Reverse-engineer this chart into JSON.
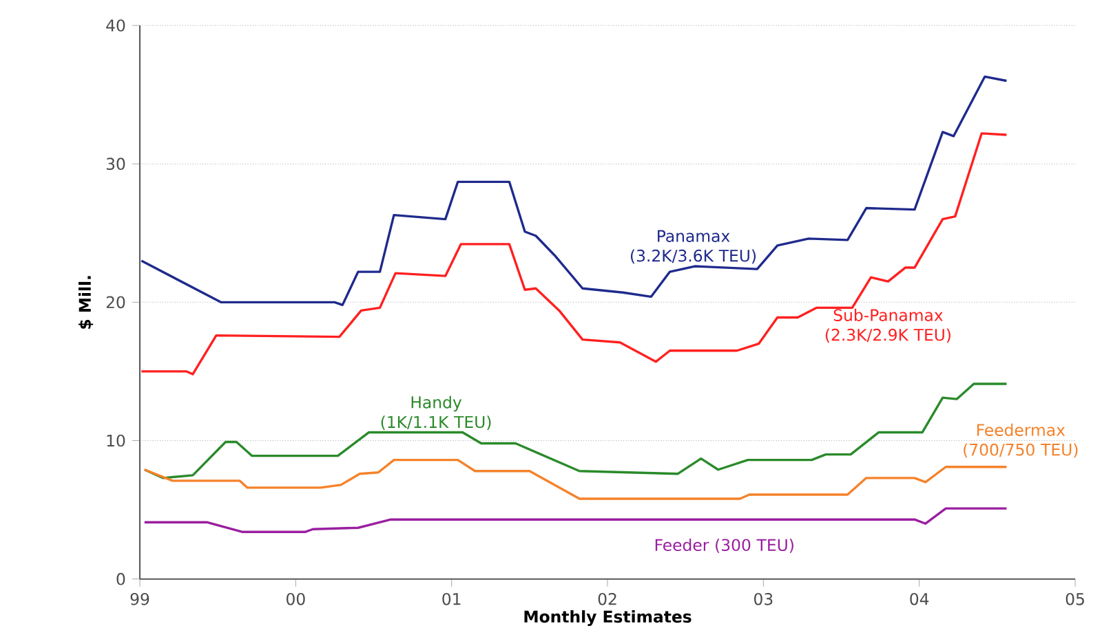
{
  "chart_data": {
    "type": "line",
    "xlabel": "Monthly Estimates",
    "ylabel": "$ Mill.",
    "xlim": [
      1999,
      2005
    ],
    "xticks": [
      {
        "value": 1999,
        "label": "99"
      },
      {
        "value": 2000,
        "label": "00"
      },
      {
        "value": 2001,
        "label": "01"
      },
      {
        "value": 2002,
        "label": "02"
      },
      {
        "value": 2003,
        "label": "03"
      },
      {
        "value": 2004,
        "label": "04"
      },
      {
        "value": 2005,
        "label": "05"
      }
    ],
    "ylim": [
      0,
      40
    ],
    "yticks": [
      0,
      10,
      20,
      30,
      40
    ],
    "grid": "y",
    "legend": false,
    "series": [
      {
        "name": "Panamax (3.2K/3.6K TEU)",
        "color": "#1f2a8c",
        "x": [
          1999.01,
          1999.52,
          2000.25,
          2000.3,
          2000.4,
          2000.54,
          2000.63,
          2000.96,
          2001.04,
          2001.37,
          2001.47,
          2001.54,
          2001.66,
          2001.84,
          2002.1,
          2002.28,
          2002.4,
          2002.56,
          2002.96,
          2003.09,
          2003.29,
          2003.54,
          2003.66,
          2003.97,
          2004.15,
          2004.22,
          2004.42,
          2004.56
        ],
        "values": [
          23.0,
          20.0,
          20.0,
          19.8,
          22.2,
          22.2,
          26.3,
          26.0,
          28.7,
          28.7,
          25.1,
          24.8,
          23.4,
          21.0,
          20.7,
          20.4,
          22.2,
          22.6,
          22.4,
          24.1,
          24.6,
          24.5,
          26.8,
          26.7,
          32.3,
          32.0,
          36.3,
          36.0
        ]
      },
      {
        "name": "Sub-Panamax (2.3K/2.9K TEU)",
        "color": "#ff2020",
        "x": [
          1999.01,
          1999.3,
          1999.34,
          1999.49,
          2000.28,
          2000.42,
          2000.54,
          2000.64,
          2000.96,
          2001.06,
          2001.37,
          2001.47,
          2001.54,
          2001.69,
          2001.84,
          2002.08,
          2002.31,
          2002.4,
          2002.83,
          2002.97,
          2003.09,
          2003.22,
          2003.34,
          2003.57,
          2003.69,
          2003.8,
          2003.91,
          2003.97,
          2004.15,
          2004.23,
          2004.4,
          2004.56
        ],
        "values": [
          15.0,
          15.0,
          14.8,
          17.6,
          17.5,
          19.4,
          19.6,
          22.1,
          21.9,
          24.2,
          24.2,
          20.9,
          21.0,
          19.4,
          17.3,
          17.1,
          15.7,
          16.5,
          16.5,
          17.0,
          18.9,
          18.9,
          19.6,
          19.6,
          21.8,
          21.5,
          22.5,
          22.5,
          26.0,
          26.2,
          32.2,
          32.1
        ]
      },
      {
        "name": "Handy (1K/1.1K TEU)",
        "color": "#2a8a2a",
        "x": [
          1999.03,
          1999.15,
          1999.34,
          1999.55,
          1999.62,
          1999.72,
          2000.27,
          2000.47,
          2001.07,
          2001.19,
          2001.41,
          2001.82,
          2002.45,
          2002.6,
          2002.71,
          2002.9,
          2003.31,
          2003.4,
          2003.56,
          2003.74,
          2004.02,
          2004.15,
          2004.24,
          2004.35,
          2004.56
        ],
        "values": [
          7.9,
          7.3,
          7.5,
          9.9,
          9.9,
          8.9,
          8.9,
          10.6,
          10.6,
          9.8,
          9.8,
          7.8,
          7.6,
          8.7,
          7.9,
          8.6,
          8.6,
          9.0,
          9.0,
          10.6,
          10.6,
          13.1,
          13.0,
          14.1,
          14.1
        ]
      },
      {
        "name": "Feedermax (700/750 TEU)",
        "color": "#f5822a",
        "x": [
          1999.03,
          1999.21,
          1999.64,
          1999.69,
          2000.16,
          2000.29,
          2000.41,
          2000.53,
          2000.63,
          2001.04,
          2001.15,
          2001.5,
          2001.82,
          2002.85,
          2002.91,
          2003.54,
          2003.66,
          2003.97,
          2004.04,
          2004.17,
          2004.56
        ],
        "values": [
          7.9,
          7.1,
          7.1,
          6.6,
          6.6,
          6.8,
          7.6,
          7.7,
          8.6,
          8.6,
          7.8,
          7.8,
          5.8,
          5.8,
          6.1,
          6.1,
          7.3,
          7.3,
          7.0,
          8.1,
          8.1
        ]
      },
      {
        "name": "Feeder (300 TEU)",
        "color": "#9a1fa0",
        "x": [
          1999.03,
          1999.43,
          1999.66,
          2000.06,
          2000.11,
          2000.4,
          2000.61,
          2003.97,
          2004.04,
          2004.17,
          2004.56
        ],
        "values": [
          4.1,
          4.1,
          3.4,
          3.4,
          3.6,
          3.7,
          4.3,
          4.3,
          4.0,
          5.1,
          5.1
        ]
      }
    ]
  }
}
